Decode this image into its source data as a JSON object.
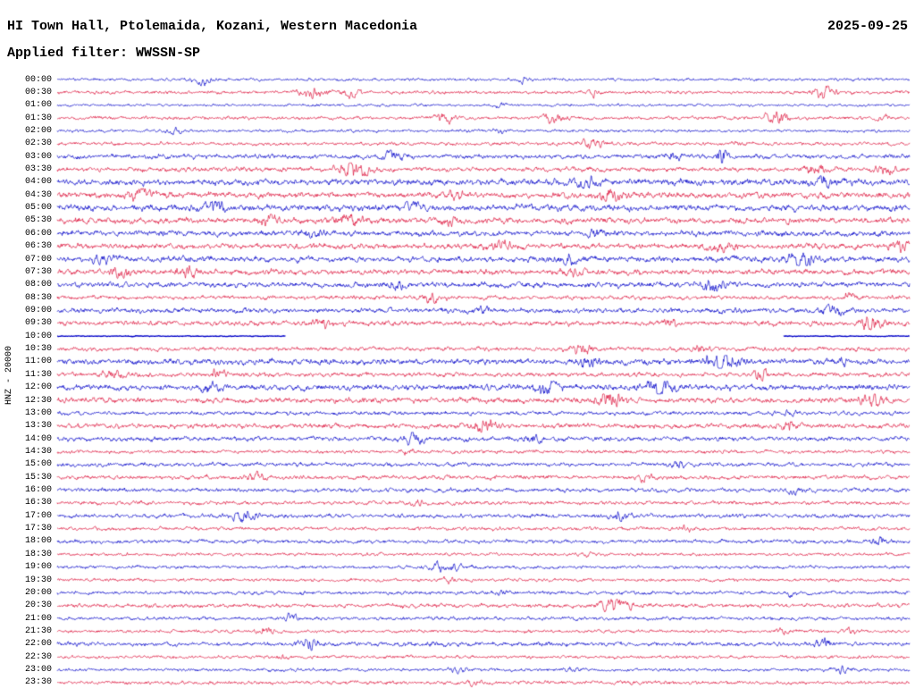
{
  "header": {
    "station_title": "HI Town Hall, Ptolemaida, Kozani, Western Macedonia",
    "date": "2025-09-25",
    "filter_label": "Applied filter: WWSSN-SP"
  },
  "axis": {
    "channel_label": "HNZ - 20000",
    "minutes_per_row": 30,
    "first_row": "00:00",
    "last_row": "23:30"
  },
  "chart_data": {
    "type": "line",
    "subtype": "helicorder-seismogram",
    "title": "HI Town Hall, Ptolemaida, Kozani, Western Macedonia",
    "date": "2025-09-25",
    "filter": "WWSSN-SP",
    "channel": "HNZ",
    "gain": "20000",
    "colors": {
      "blue": "#0000c8",
      "red": "#dc143c",
      "text": "#000000"
    },
    "legend": "rows alternate blue/red, 30 minutes per row, 48 rows 00:00-23:30",
    "rows": [
      {
        "t": "00:00",
        "c": "b",
        "a": 1.3,
        "bursts": [
          [
            0.17,
            0.008,
            4
          ],
          [
            0.55,
            0.006,
            2.5
          ]
        ]
      },
      {
        "t": "00:30",
        "c": "r",
        "a": 1.5,
        "bursts": [
          [
            0.3,
            0.012,
            5
          ],
          [
            0.345,
            0.008,
            3
          ],
          [
            0.63,
            0.006,
            2
          ],
          [
            0.9,
            0.01,
            4
          ]
        ]
      },
      {
        "t": "01:00",
        "c": "b",
        "a": 1.2,
        "bursts": [
          [
            0.52,
            0.006,
            2
          ]
        ]
      },
      {
        "t": "01:30",
        "c": "r",
        "a": 1.5,
        "bursts": [
          [
            0.455,
            0.01,
            3.5
          ],
          [
            0.585,
            0.012,
            3
          ],
          [
            0.845,
            0.01,
            5
          ],
          [
            0.97,
            0.006,
            2.5
          ]
        ]
      },
      {
        "t": "02:00",
        "c": "b",
        "a": 1.3,
        "bursts": [
          [
            0.135,
            0.008,
            3
          ],
          [
            0.52,
            0.005,
            2
          ]
        ]
      },
      {
        "t": "02:30",
        "c": "r",
        "a": 1.5,
        "bursts": [
          [
            0.625,
            0.01,
            3.5
          ],
          [
            0.8,
            0.006,
            2
          ]
        ]
      },
      {
        "t": "03:00",
        "c": "b",
        "a": 2.0,
        "bursts": [
          [
            0.39,
            0.01,
            3.5
          ],
          [
            0.72,
            0.008,
            2.5
          ],
          [
            0.78,
            0.004,
            6
          ]
        ]
      },
      {
        "t": "03:30",
        "c": "r",
        "a": 2.0,
        "bursts": [
          [
            0.35,
            0.012,
            6
          ],
          [
            0.89,
            0.01,
            3
          ],
          [
            0.97,
            0.008,
            3
          ]
        ]
      },
      {
        "t": "04:00",
        "c": "b",
        "a": 2.8,
        "bursts": [
          [
            0.62,
            0.008,
            2.5
          ],
          [
            0.9,
            0.008,
            3
          ]
        ]
      },
      {
        "t": "04:30",
        "c": "r",
        "a": 2.6,
        "bursts": [
          [
            0.1,
            0.01,
            2.5
          ],
          [
            0.47,
            0.008,
            2
          ],
          [
            0.65,
            0.012,
            2.5
          ]
        ]
      },
      {
        "t": "05:00",
        "c": "b",
        "a": 2.8,
        "bursts": [
          [
            0.185,
            0.01,
            3
          ],
          [
            0.42,
            0.008,
            2
          ]
        ]
      },
      {
        "t": "05:30",
        "c": "r",
        "a": 2.6,
        "bursts": [
          [
            0.25,
            0.008,
            2.5
          ],
          [
            0.345,
            0.01,
            3
          ],
          [
            0.46,
            0.008,
            2
          ]
        ]
      },
      {
        "t": "06:00",
        "c": "b",
        "a": 2.4,
        "bursts": [
          [
            0.3,
            0.01,
            2.5
          ],
          [
            0.63,
            0.006,
            2
          ]
        ]
      },
      {
        "t": "06:30",
        "c": "r",
        "a": 2.4,
        "bursts": [
          [
            0.52,
            0.01,
            2.5
          ],
          [
            0.78,
            0.01,
            3
          ],
          [
            0.99,
            0.008,
            3
          ]
        ]
      },
      {
        "t": "07:00",
        "c": "b",
        "a": 2.6,
        "bursts": [
          [
            0.05,
            0.008,
            2.5
          ],
          [
            0.6,
            0.006,
            2
          ],
          [
            0.87,
            0.012,
            3.5
          ]
        ]
      },
      {
        "t": "07:30",
        "c": "r",
        "a": 2.4,
        "bursts": [
          [
            0.075,
            0.008,
            2.5
          ],
          [
            0.155,
            0.01,
            2.5
          ],
          [
            0.6,
            0.01,
            2
          ]
        ]
      },
      {
        "t": "08:00",
        "c": "b",
        "a": 2.4,
        "bursts": [
          [
            0.4,
            0.006,
            2
          ],
          [
            0.77,
            0.012,
            3
          ]
        ]
      },
      {
        "t": "08:30",
        "c": "r",
        "a": 1.8,
        "bursts": [
          [
            0.44,
            0.008,
            3.5
          ],
          [
            0.93,
            0.006,
            2
          ]
        ]
      },
      {
        "t": "09:00",
        "c": "b",
        "a": 2.2,
        "bursts": [
          [
            0.5,
            0.006,
            2
          ],
          [
            0.91,
            0.01,
            3.5
          ]
        ]
      },
      {
        "t": "09:30",
        "c": "r",
        "a": 2.2,
        "bursts": [
          [
            0.31,
            0.01,
            2.5
          ],
          [
            0.72,
            0.006,
            2
          ],
          [
            0.955,
            0.01,
            3.5
          ]
        ]
      },
      {
        "t": "10:00",
        "c": "b",
        "a": 0.35,
        "lw": 1.3,
        "segments": [
          [
            0,
            0.268
          ],
          [
            0.852,
            1
          ]
        ],
        "bursts": []
      },
      {
        "t": "10:30",
        "c": "r",
        "a": 1.8,
        "bursts": [
          [
            0.615,
            0.01,
            3
          ],
          [
            0.755,
            0.008,
            2.5
          ]
        ]
      },
      {
        "t": "11:00",
        "c": "b",
        "a": 2.6,
        "bursts": [
          [
            0.625,
            0.008,
            2.5
          ],
          [
            0.78,
            0.014,
            4
          ],
          [
            0.92,
            0.006,
            2
          ]
        ]
      },
      {
        "t": "11:30",
        "c": "r",
        "a": 2.0,
        "bursts": [
          [
            0.065,
            0.008,
            3
          ],
          [
            0.19,
            0.008,
            2.5
          ],
          [
            0.825,
            0.01,
            2.5
          ]
        ]
      },
      {
        "t": "12:00",
        "c": "b",
        "a": 2.6,
        "bursts": [
          [
            0.18,
            0.008,
            2.5
          ],
          [
            0.575,
            0.01,
            3
          ],
          [
            0.705,
            0.012,
            3.5
          ]
        ]
      },
      {
        "t": "12:30",
        "c": "r",
        "a": 2.4,
        "bursts": [
          [
            0.65,
            0.012,
            3.5
          ],
          [
            0.955,
            0.01,
            3
          ]
        ]
      },
      {
        "t": "13:00",
        "c": "b",
        "a": 1.8,
        "bursts": [
          [
            0.86,
            0.006,
            2
          ]
        ]
      },
      {
        "t": "13:30",
        "c": "r",
        "a": 2.2,
        "bursts": [
          [
            0.5,
            0.01,
            3.5
          ],
          [
            0.86,
            0.01,
            2.5
          ]
        ]
      },
      {
        "t": "14:00",
        "c": "b",
        "a": 2.0,
        "bursts": [
          [
            0.42,
            0.008,
            3
          ],
          [
            0.555,
            0.008,
            2.5
          ]
        ]
      },
      {
        "t": "14:30",
        "c": "r",
        "a": 1.6,
        "bursts": [
          [
            0.41,
            0.006,
            2
          ]
        ]
      },
      {
        "t": "15:00",
        "c": "b",
        "a": 1.8,
        "bursts": [
          [
            0.73,
            0.006,
            2
          ]
        ]
      },
      {
        "t": "15:30",
        "c": "r",
        "a": 1.8,
        "bursts": [
          [
            0.235,
            0.01,
            3
          ],
          [
            0.69,
            0.006,
            2
          ]
        ]
      },
      {
        "t": "16:00",
        "c": "b",
        "a": 1.8,
        "bursts": [
          [
            0.87,
            0.008,
            2.5
          ]
        ]
      },
      {
        "t": "16:30",
        "c": "r",
        "a": 1.7,
        "bursts": [
          [
            0.42,
            0.006,
            2
          ]
        ]
      },
      {
        "t": "17:00",
        "c": "b",
        "a": 1.8,
        "bursts": [
          [
            0.22,
            0.01,
            3.5
          ],
          [
            0.66,
            0.01,
            3
          ]
        ]
      },
      {
        "t": "17:30",
        "c": "r",
        "a": 1.6,
        "bursts": [
          [
            0.74,
            0.006,
            2
          ]
        ]
      },
      {
        "t": "18:00",
        "c": "b",
        "a": 1.7,
        "bursts": [
          [
            0.96,
            0.008,
            2.5
          ]
        ]
      },
      {
        "t": "18:30",
        "c": "r",
        "a": 1.4,
        "bursts": [
          [
            0.62,
            0.006,
            2
          ]
        ]
      },
      {
        "t": "19:00",
        "c": "b",
        "a": 1.5,
        "bursts": [
          [
            0.455,
            0.012,
            4
          ]
        ]
      },
      {
        "t": "19:30",
        "c": "r",
        "a": 1.4,
        "bursts": [
          [
            0.46,
            0.006,
            2
          ]
        ]
      },
      {
        "t": "20:00",
        "c": "b",
        "a": 1.6,
        "bursts": [
          [
            0.52,
            0.006,
            2
          ],
          [
            0.86,
            0.006,
            2
          ]
        ]
      },
      {
        "t": "20:30",
        "c": "r",
        "a": 1.8,
        "bursts": [
          [
            0.655,
            0.012,
            4
          ]
        ]
      },
      {
        "t": "21:00",
        "c": "b",
        "a": 1.6,
        "bursts": [
          [
            0.275,
            0.008,
            2.5
          ]
        ]
      },
      {
        "t": "21:30",
        "c": "r",
        "a": 1.4,
        "bursts": [
          [
            0.245,
            0.008,
            3
          ],
          [
            0.85,
            0.008,
            2.5
          ],
          [
            0.93,
            0.006,
            2.5
          ]
        ]
      },
      {
        "t": "22:00",
        "c": "b",
        "a": 1.9,
        "bursts": [
          [
            0.295,
            0.008,
            3
          ],
          [
            0.9,
            0.01,
            3
          ]
        ]
      },
      {
        "t": "22:30",
        "c": "r",
        "a": 1.4,
        "bursts": [
          [
            0.26,
            0.006,
            2
          ]
        ]
      },
      {
        "t": "23:00",
        "c": "b",
        "a": 1.4,
        "bursts": [
          [
            0.47,
            0.006,
            2.5
          ],
          [
            0.605,
            0.006,
            2.5
          ],
          [
            0.92,
            0.008,
            2.5
          ]
        ]
      },
      {
        "t": "23:30",
        "c": "r",
        "a": 1.6,
        "bursts": [
          [
            0.49,
            0.006,
            2
          ]
        ]
      }
    ]
  }
}
